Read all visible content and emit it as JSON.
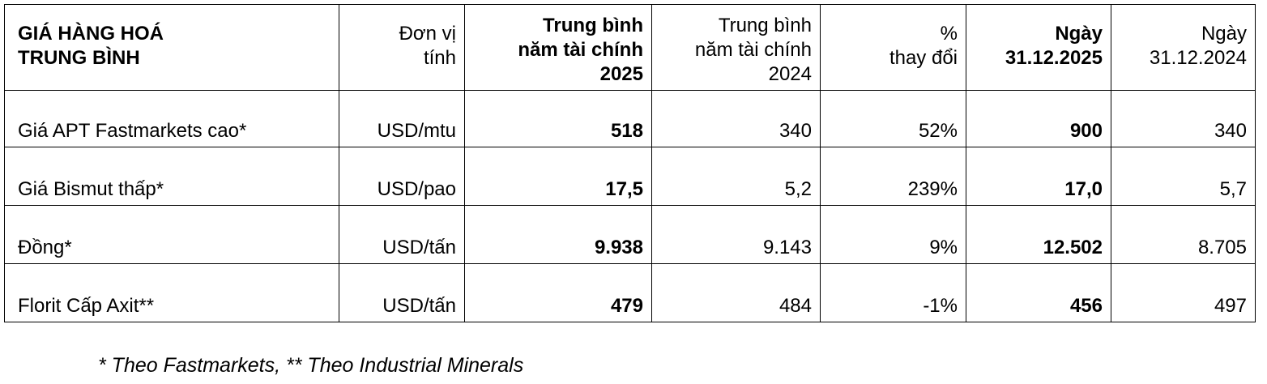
{
  "table": {
    "header": {
      "title_line1": "GIÁ HÀNG HOÁ",
      "title_line2": "TRUNG BÌNH",
      "unit_line1": "Đơn vị",
      "unit_line2": "tính",
      "avg2025_line1": "Trung bình",
      "avg2025_line2": "năm tài chính",
      "avg2025_line3": "2025",
      "avg2024_line1": "Trung bình",
      "avg2024_line2": "năm tài chính",
      "avg2024_line3": "2024",
      "change_line1": "%",
      "change_line2": "thay đổi",
      "date2025_line1": "Ngày",
      "date2025_line2": "31.12.2025",
      "date2024_line1": "Ngày",
      "date2024_line2": "31.12.2024"
    },
    "rows": [
      {
        "name": "Giá APT Fastmarkets cao*",
        "unit": "USD/mtu",
        "avg2025": "518",
        "avg2024": "340",
        "change": "52%",
        "date2025": "900",
        "date2024": "340"
      },
      {
        "name": "Giá Bismut thấp*",
        "unit": "USD/pao",
        "avg2025": "17,5",
        "avg2024": "5,2",
        "change": "239%",
        "date2025": "17,0",
        "date2024": "5,7"
      },
      {
        "name": "Đồng*",
        "unit": "USD/tấn",
        "avg2025": "9.938",
        "avg2024": "9.143",
        "change": "9%",
        "date2025": "12.502",
        "date2024": "8.705"
      },
      {
        "name": "Florit Cấp Axit**",
        "unit": "USD/tấn",
        "avg2025": "479",
        "avg2024": "484",
        "change": "-1%",
        "date2025": "456",
        "date2024": "497"
      }
    ]
  },
  "footnote": "* Theo Fastmarkets, ** Theo Industrial Minerals"
}
